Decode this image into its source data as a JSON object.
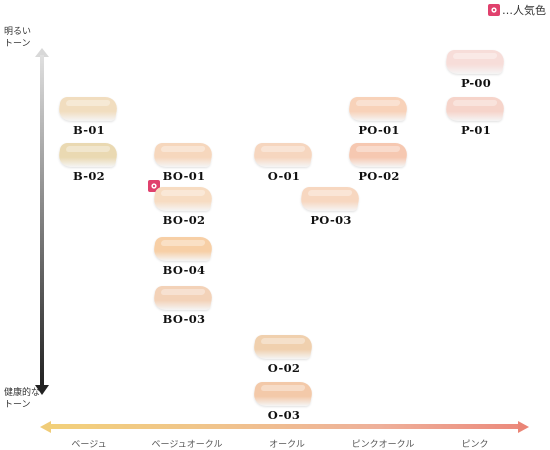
{
  "legend": {
    "label": "…人気色",
    "color": "#e0416d"
  },
  "y_axis": {
    "top_label": "明るい\nトーン",
    "bottom_label": "健康的な\nトーン"
  },
  "x_axis": {
    "labels": [
      "ベージュ",
      "ベージュオークル",
      "オークル",
      "ピンクオークル",
      "ピンク"
    ]
  },
  "shades": [
    {
      "id": "b01",
      "label": "B-01",
      "color": "#f1ddbf"
    },
    {
      "id": "b02",
      "label": "B-02",
      "color": "#ead9b2"
    },
    {
      "id": "bo01",
      "label": "BO-01",
      "color": "#f6d7bd"
    },
    {
      "id": "bo02",
      "label": "BO-02",
      "color": "#f7dcc2",
      "popular": true
    },
    {
      "id": "bo04",
      "label": "BO-04",
      "color": "#f7cfa6"
    },
    {
      "id": "bo03",
      "label": "BO-03",
      "color": "#f3d2b8"
    },
    {
      "id": "o01",
      "label": "O-01",
      "color": "#f6d6bf"
    },
    {
      "id": "o02",
      "label": "O-02",
      "color": "#f0d0ae"
    },
    {
      "id": "o03",
      "label": "O-03",
      "color": "#f3c9a9"
    },
    {
      "id": "po03",
      "label": "PO-03",
      "color": "#f7d7c0"
    },
    {
      "id": "po01",
      "label": "PO-01",
      "color": "#f8d2b9"
    },
    {
      "id": "po02",
      "label": "PO-02",
      "color": "#f6c8b1"
    },
    {
      "id": "p00",
      "label": "P-00",
      "color": "#f7ddd9"
    },
    {
      "id": "p01",
      "label": "P-01",
      "color": "#f6d4ca"
    }
  ]
}
